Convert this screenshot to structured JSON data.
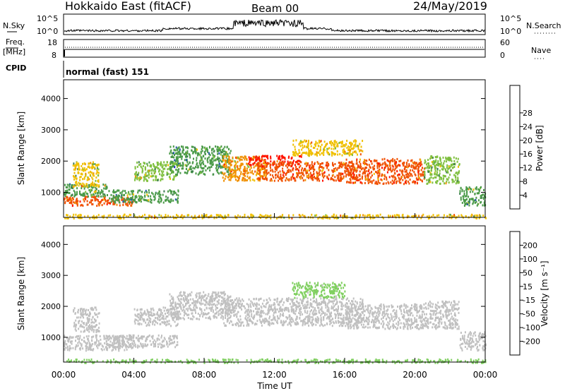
{
  "header": {
    "station": "Hokkaido East (fitACF)",
    "beam": "Beam 00",
    "date": "24/May/2019"
  },
  "panels": {
    "nsky": {
      "label": "N.Sky",
      "right_label": "N.Search",
      "tick_top": "10^5",
      "tick_bottom": "10^0"
    },
    "freq": {
      "label_top": "Freq.",
      "label_unit": "[MHz]",
      "tick_top": "18",
      "tick_bottom": "8",
      "right_label": "Nave",
      "right_tick_top": "60",
      "right_tick_bottom": "0"
    },
    "cpid": {
      "label": "CPID",
      "mode_text": "normal (fast) 151"
    }
  },
  "colors": {
    "power_scale": [
      "#0000ff",
      "#2255aa",
      "#3a7a50",
      "#4a9a48",
      "#80c040",
      "#f0c000",
      "#f09000",
      "#f05000",
      "#ff1000"
    ],
    "velocity_scale": [
      "#2040a0",
      "#306080",
      "#40a040",
      "#80d060",
      "#c0c0c0",
      "#f0d060",
      "#f0a030",
      "#f06010",
      "#ff0000"
    ]
  },
  "chart_data": [
    {
      "type": "heatmap",
      "name": "power",
      "xlabel": "",
      "ylabel": "Slant Range [km]",
      "yticks": [
        1000,
        2000,
        3000,
        4000
      ],
      "ylim": [
        200,
        4600
      ],
      "xlim": [
        0,
        24
      ],
      "colorbar": {
        "label": "Power [dB]",
        "ticks": [
          4,
          8,
          12,
          16,
          20,
          24,
          28
        ],
        "range": [
          0,
          32
        ]
      },
      "bands": [
        {
          "x": [
            0.0,
            4.0
          ],
          "y": [
            600,
            900
          ],
          "value": 26
        },
        {
          "x": [
            0.0,
            2.5
          ],
          "y": [
            900,
            1300
          ],
          "value": 14
        },
        {
          "x": [
            0.5,
            2.0
          ],
          "y": [
            1200,
            2000
          ],
          "value": 18
        },
        {
          "x": [
            2.5,
            6.5
          ],
          "y": [
            700,
            1100
          ],
          "value": 12
        },
        {
          "x": [
            4.0,
            6.5
          ],
          "y": [
            1400,
            2000
          ],
          "value": 17
        },
        {
          "x": [
            6.0,
            9.5
          ],
          "y": [
            1600,
            2500
          ],
          "value": 11
        },
        {
          "x": [
            9.0,
            11.5
          ],
          "y": [
            1400,
            2200
          ],
          "value": 22
        },
        {
          "x": [
            10.5,
            13.5
          ],
          "y": [
            1900,
            2200
          ],
          "value": 29
        },
        {
          "x": [
            11.0,
            16.5
          ],
          "y": [
            1400,
            2000
          ],
          "value": 26
        },
        {
          "x": [
            13.0,
            17.0
          ],
          "y": [
            2200,
            2700
          ],
          "value": 21
        },
        {
          "x": [
            16.0,
            20.5
          ],
          "y": [
            1300,
            2100
          ],
          "value": 27
        },
        {
          "x": [
            20.5,
            22.5
          ],
          "y": [
            1300,
            2200
          ],
          "value": 15
        },
        {
          "x": [
            22.5,
            24.0
          ],
          "y": [
            600,
            1200
          ],
          "value": 14
        },
        {
          "x": [
            0.0,
            24.0
          ],
          "y": [
            200,
            320
          ],
          "value": 20
        }
      ]
    },
    {
      "type": "heatmap",
      "name": "velocity",
      "xlabel": "Time UT",
      "ylabel": "Slant Range [km]",
      "xticks": [
        "00:00",
        "04:00",
        "08:00",
        "12:00",
        "16:00",
        "20:00",
        "00:00"
      ],
      "xtick_values": [
        0,
        4,
        8,
        12,
        16,
        20,
        24
      ],
      "yticks": [
        1000,
        2000,
        3000,
        4000
      ],
      "ylim": [
        200,
        4600
      ],
      "xlim": [
        0,
        24
      ],
      "colorbar": {
        "label": "Velocity [m s⁻¹]",
        "ticks": [
          200,
          100,
          50,
          15,
          -15,
          -50,
          -100,
          -200
        ]
      },
      "bands": [
        {
          "x": [
            0.0,
            4.0
          ],
          "y": [
            600,
            1100
          ],
          "value": 0
        },
        {
          "x": [
            0.5,
            2.0
          ],
          "y": [
            1200,
            2000
          ],
          "value": 0
        },
        {
          "x": [
            2.5,
            6.5
          ],
          "y": [
            700,
            1100
          ],
          "value": 0
        },
        {
          "x": [
            4.0,
            6.5
          ],
          "y": [
            1400,
            2000
          ],
          "value": 0
        },
        {
          "x": [
            6.0,
            9.5
          ],
          "y": [
            1600,
            2500
          ],
          "value": 0
        },
        {
          "x": [
            9.0,
            17.0
          ],
          "y": [
            1400,
            2300
          ],
          "value": -5
        },
        {
          "x": [
            13.0,
            16.0
          ],
          "y": [
            2300,
            2800
          ],
          "value": 20
        },
        {
          "x": [
            16.0,
            20.5
          ],
          "y": [
            1300,
            2100
          ],
          "value": 0
        },
        {
          "x": [
            20.5,
            22.5
          ],
          "y": [
            1300,
            2200
          ],
          "value": 0
        },
        {
          "x": [
            22.5,
            24.0
          ],
          "y": [
            600,
            1200
          ],
          "value": 0
        },
        {
          "x": [
            0.0,
            24.0
          ],
          "y": [
            200,
            320
          ],
          "value": 40
        }
      ]
    }
  ]
}
